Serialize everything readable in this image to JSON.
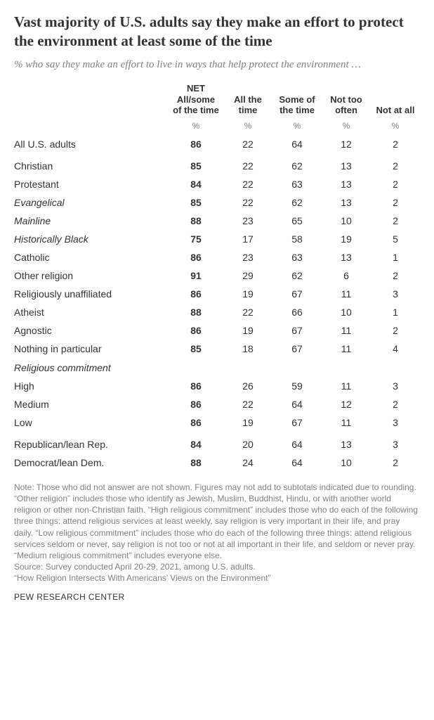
{
  "type": "table",
  "colors": {
    "background": "#ffffff",
    "title": "#333333",
    "subtitle": "#808080",
    "body_text": "#333333",
    "muted_text": "#808080"
  },
  "typography": {
    "title_family": "Georgia",
    "title_fontsize": 21,
    "title_weight": "bold",
    "subtitle_family": "Georgia",
    "subtitle_style": "italic",
    "subtitle_fontsize": 15,
    "table_family": "Arial",
    "table_fontsize": 14,
    "header_fontsize": 13,
    "note_fontsize": 12
  },
  "title": "Vast majority of U.S. adults say they make an effort to protect the environment at least some of the time",
  "subtitle": "% who say they make an effort to live in ways that help protect the environment …",
  "columns": {
    "net": "NET All/some of the time",
    "all": "All the time",
    "some": "Some of the time",
    "not": "Not too often",
    "none": "Not at all"
  },
  "percent_label": "%",
  "rows": {
    "all_us": {
      "label": "All U.S. adults",
      "net": "86",
      "all": "22",
      "some": "64",
      "not": "12",
      "none": "2"
    },
    "christian": {
      "label": "Christian",
      "net": "85",
      "all": "22",
      "some": "62",
      "not": "13",
      "none": "2"
    },
    "protestant": {
      "label": "Protestant",
      "net": "84",
      "all": "22",
      "some": "63",
      "not": "13",
      "none": "2"
    },
    "evangelical": {
      "label": "Evangelical",
      "net": "85",
      "all": "22",
      "some": "62",
      "not": "13",
      "none": "2"
    },
    "mainline": {
      "label": "Mainline",
      "net": "88",
      "all": "23",
      "some": "65",
      "not": "10",
      "none": "2"
    },
    "histblack": {
      "label": "Historically Black",
      "net": "75",
      "all": "17",
      "some": "58",
      "not": "19",
      "none": "5"
    },
    "catholic": {
      "label": "Catholic",
      "net": "86",
      "all": "23",
      "some": "63",
      "not": "13",
      "none": "1"
    },
    "other_rel": {
      "label": "Other religion",
      "net": "91",
      "all": "29",
      "some": "62",
      "not": "6",
      "none": "2"
    },
    "unaffil": {
      "label": "Religiously unaffiliated",
      "net": "86",
      "all": "19",
      "some": "67",
      "not": "11",
      "none": "3"
    },
    "atheist": {
      "label": "Atheist",
      "net": "88",
      "all": "22",
      "some": "66",
      "not": "10",
      "none": "1"
    },
    "agnostic": {
      "label": "Agnostic",
      "net": "86",
      "all": "19",
      "some": "67",
      "not": "11",
      "none": "2"
    },
    "nothing": {
      "label": "Nothing in particular",
      "net": "85",
      "all": "18",
      "some": "67",
      "not": "11",
      "none": "4"
    },
    "section_commit": {
      "label": "Religious commitment"
    },
    "high": {
      "label": "High",
      "net": "86",
      "all": "26",
      "some": "59",
      "not": "11",
      "none": "3"
    },
    "medium": {
      "label": "Medium",
      "net": "86",
      "all": "22",
      "some": "64",
      "not": "12",
      "none": "2"
    },
    "low": {
      "label": "Low",
      "net": "86",
      "all": "19",
      "some": "67",
      "not": "11",
      "none": "3"
    },
    "rep": {
      "label": "Republican/lean Rep.",
      "net": "84",
      "all": "20",
      "some": "64",
      "not": "13",
      "none": "3"
    },
    "dem": {
      "label": "Democrat/lean Dem.",
      "net": "88",
      "all": "24",
      "some": "64",
      "not": "10",
      "none": "2"
    }
  },
  "note": "Note: Those who did not answer are not shown. Figures may not add to subtotals indicated due to rounding. “Other religion” includes those who identify as Jewish, Muslim, Buddhist, Hindu, or with another world religion or other non-Christian faith. “High religious commitment” includes those who do each of the following three things: attend religious services at least weekly, say religion is very important in their life, and pray daily. “Low religious commitment” includes those who do each of the following three things: attend religious services seldom or never, say religion is not too or not at all important in their life, and seldom or never pray. “Medium religious commitment” includes everyone else.",
  "source": "Source: Survey conducted April 20-29, 2021, among U.S. adults.",
  "report": "“How Religion Intersects With Americans’ Views on the Environment”",
  "footer": "PEW RESEARCH CENTER"
}
